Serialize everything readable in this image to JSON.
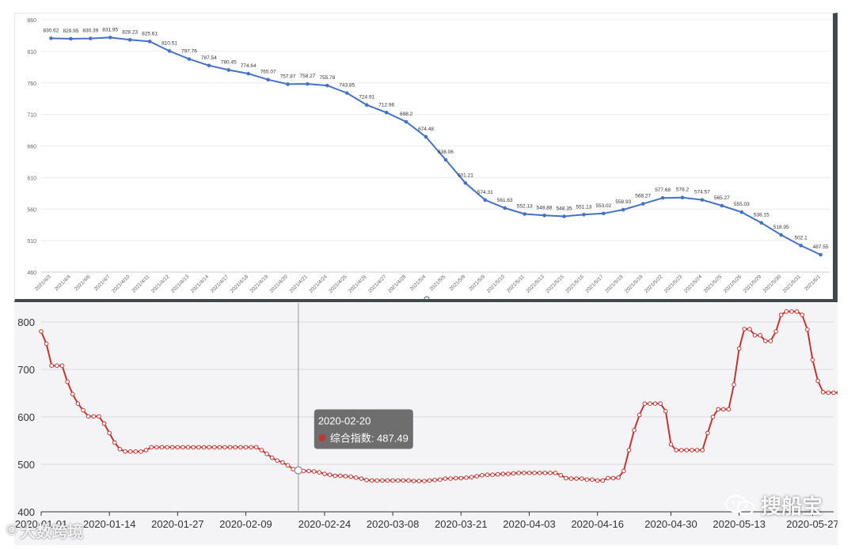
{
  "chart_data": [
    {
      "type": "line",
      "title": "",
      "xlabel": "",
      "ylabel": "",
      "ylim": [
        460,
        860
      ],
      "yticks": [
        460,
        510,
        560,
        610,
        660,
        710,
        760,
        810,
        860
      ],
      "grid": true,
      "legend": "none",
      "color": "#4472c4",
      "categories": [
        "2021/4/3",
        "2021/4/4",
        "2021/4/6",
        "2021/4/7",
        "2021/4/10",
        "2021/4/11",
        "2021/4/12",
        "2021/4/13",
        "2021/4/14",
        "2021/4/17",
        "2021/4/18",
        "2021/4/19",
        "2021/4/20",
        "2021/4/21",
        "2021/4/24",
        "2021/4/25",
        "2021/4/26",
        "2021/4/27",
        "2021/4/28",
        "2021/5/4",
        "2021/5/5",
        "2021/5/8",
        "2021/5/9",
        "2021/5/10",
        "2021/5/11",
        "2021/5/13",
        "2021/5/15",
        "2021/5/16",
        "2021/5/17",
        "2021/5/18",
        "2021/5/19",
        "2021/5/22",
        "2021/5/23",
        "2021/5/24",
        "2021/5/25",
        "2021/5/26",
        "2021/5/29",
        "2021/5/30",
        "2021/5/31",
        "2021/6/1"
      ],
      "series": [
        {
          "values": [
            830.62,
            829.95,
            830.39,
            831.95,
            828.23,
            825.61,
            810.51,
            797.76,
            787.54,
            780.45,
            774.64,
            765.07,
            757.87,
            758.27,
            755.78,
            743.85,
            724.91,
            712.96,
            698.2,
            674.48,
            638.06,
            601.21,
            574.31,
            561.63,
            552.13,
            549.88,
            548.35,
            551.13,
            553.02,
            558.93,
            568.27,
            577.68,
            578.2,
            574.57,
            565.27,
            555.03,
            538.15,
            518.95,
            502.1,
            487.55
          ]
        }
      ]
    },
    {
      "type": "line",
      "title": "",
      "xlabel": "",
      "ylabel": "",
      "ylim": [
        400,
        820
      ],
      "yticks": [
        400,
        500,
        600,
        700,
        800
      ],
      "grid": true,
      "legend": "none",
      "color": "#c23531",
      "x_start": "2020-01-01",
      "x_end": "2020-05-31",
      "xticks": [
        "2020-01-01",
        "2020-01-14",
        "2020-01-27",
        "2020-02-09",
        "2020-02-24",
        "2020-03-08",
        "2020-03-21",
        "2020-04-03",
        "2020-04-16",
        "2020-04-30",
        "2020-05-13",
        "2020-05-27"
      ],
      "series": [
        {
          "values": [
            780,
            754,
            708,
            708,
            708,
            674,
            648,
            628,
            614,
            601,
            601,
            601,
            586,
            566,
            546,
            532,
            527,
            527,
            527,
            527,
            530,
            536,
            536,
            536,
            536,
            536,
            536,
            536,
            536,
            536,
            536,
            536,
            536,
            536,
            536,
            536,
            536,
            536,
            536,
            536,
            536,
            536,
            530,
            522,
            514,
            508,
            504,
            498,
            490,
            487.49,
            486,
            486,
            485,
            483,
            480,
            478,
            476,
            476,
            475,
            474,
            472,
            470,
            467,
            466,
            466,
            466,
            466,
            466,
            466,
            466,
            466,
            465,
            465,
            465,
            466,
            467,
            468,
            470,
            470,
            471,
            471,
            472,
            473,
            475,
            477,
            478,
            478,
            479,
            480,
            480,
            481,
            482,
            482,
            482,
            482,
            482,
            482,
            482,
            482,
            477,
            471,
            470,
            470,
            470,
            468,
            468,
            466,
            466,
            471,
            471,
            472,
            486,
            530,
            572,
            604,
            628,
            628,
            628,
            628,
            612,
            542,
            530,
            530,
            530,
            530,
            530,
            530,
            566,
            600,
            616,
            616,
            616,
            668,
            744,
            785,
            785,
            772,
            772,
            760,
            760,
            780,
            815,
            822,
            822,
            822,
            815,
            784,
            720,
            676,
            652,
            651,
            651,
            651,
            648
          ]
        }
      ],
      "tooltip": {
        "date": "2020-02-20",
        "label": "综合指数:",
        "value": "487.49"
      }
    }
  ],
  "watermark_left": "大数跨境",
  "watermark_right": "搜船宝"
}
